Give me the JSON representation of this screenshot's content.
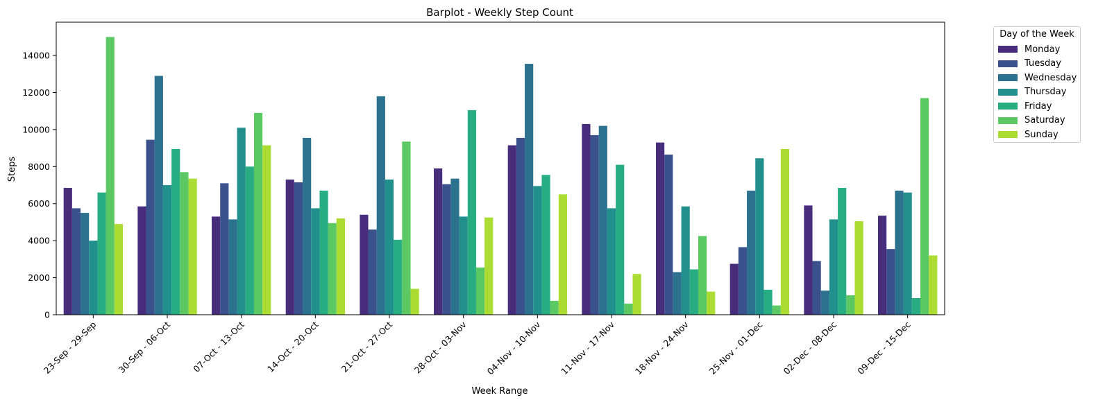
{
  "chart_data": {
    "type": "bar",
    "title": "Barplot - Weekly Step Count",
    "xlabel": "Week Range",
    "ylabel": "Steps",
    "ylim": [
      0,
      15800
    ],
    "yticks": [
      0,
      2000,
      4000,
      6000,
      8000,
      10000,
      12000,
      14000
    ],
    "grid": false,
    "legend": {
      "title": "Day of the Week",
      "placement": "outside-top-right"
    },
    "categories": [
      "23-Sep - 29-Sep",
      "30-Sep - 06-Oct",
      "07-Oct - 13-Oct",
      "14-Oct - 20-Oct",
      "21-Oct - 27-Oct",
      "28-Oct - 03-Nov",
      "04-Nov - 10-Nov",
      "11-Nov - 17-Nov",
      "18-Nov - 24-Nov",
      "25-Nov - 01-Dec",
      "02-Dec - 08-Dec",
      "09-Dec - 15-Dec"
    ],
    "series": [
      {
        "name": "Monday",
        "color": "#472d7b",
        "values": [
          6850,
          5850,
          5300,
          7300,
          5400,
          7900,
          9150,
          10300,
          9300,
          2750,
          5900,
          5350
        ]
      },
      {
        "name": "Tuesday",
        "color": "#3b518b",
        "values": [
          5750,
          9450,
          7100,
          7150,
          4600,
          7050,
          9550,
          9700,
          8650,
          3650,
          2900,
          3550
        ]
      },
      {
        "name": "Wednesday",
        "color": "#2c718e",
        "values": [
          5500,
          12900,
          5150,
          9550,
          11800,
          7350,
          13550,
          10200,
          2300,
          6700,
          1300,
          6700
        ]
      },
      {
        "name": "Thursday",
        "color": "#21908d",
        "values": [
          4000,
          7000,
          10100,
          5750,
          7300,
          5300,
          6950,
          5750,
          5850,
          8450,
          5150,
          6600
        ]
      },
      {
        "name": "Friday",
        "color": "#27ad81",
        "values": [
          6600,
          8950,
          8000,
          6700,
          4050,
          11050,
          7550,
          8100,
          2450,
          1350,
          6850,
          900
        ]
      },
      {
        "name": "Saturday",
        "color": "#5cc863",
        "values": [
          15000,
          7700,
          10900,
          4950,
          9350,
          2550,
          750,
          600,
          4250,
          500,
          1050,
          11700
        ]
      },
      {
        "name": "Sunday",
        "color": "#aadc32",
        "values": [
          4900,
          7350,
          9150,
          5200,
          1400,
          5250,
          6500,
          2200,
          1250,
          8950,
          5050,
          3200
        ]
      }
    ]
  }
}
